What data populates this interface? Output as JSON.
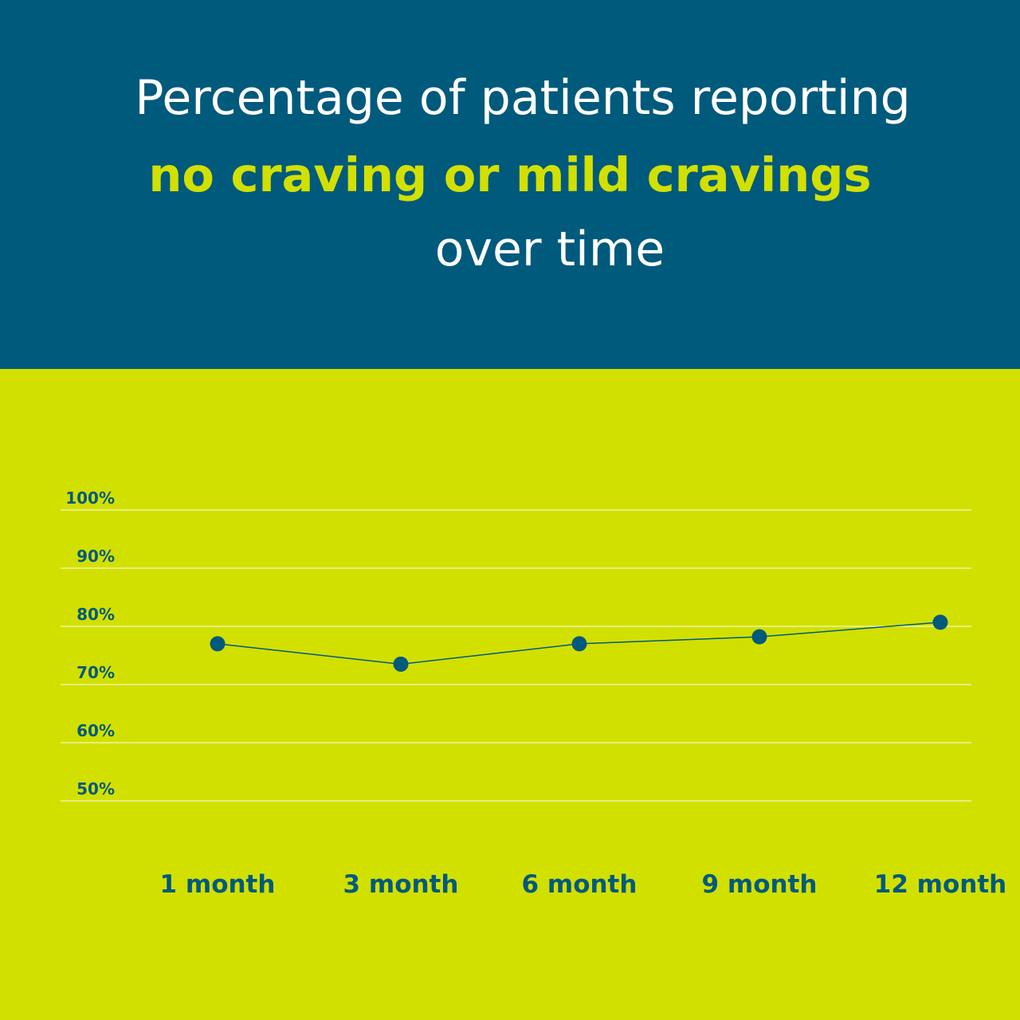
{
  "title": {
    "line1": "Percentage of patients reporting",
    "line2": "no craving or mild cravings",
    "line3": "over time"
  },
  "colors": {
    "header_bg": "#005a7c",
    "chart_bg": "#d2e000",
    "accent": "#d2e000",
    "line": "#005a7c",
    "grid": "#f4f7c4"
  },
  "chart_data": {
    "type": "line",
    "categories": [
      "1 month",
      "3 month",
      "6 month",
      "9 month",
      "12 month"
    ],
    "series": [
      {
        "values": [
          77,
          73.5,
          77,
          78.2,
          80.7
        ]
      }
    ],
    "ylim": [
      50,
      100
    ],
    "yticks": [
      100,
      90,
      80,
      70,
      60,
      50
    ],
    "ytick_labels": [
      "100%",
      "90%",
      "80%",
      "70%",
      "60%",
      "50%"
    ],
    "grid": true,
    "xlabel": "",
    "ylabel": ""
  }
}
